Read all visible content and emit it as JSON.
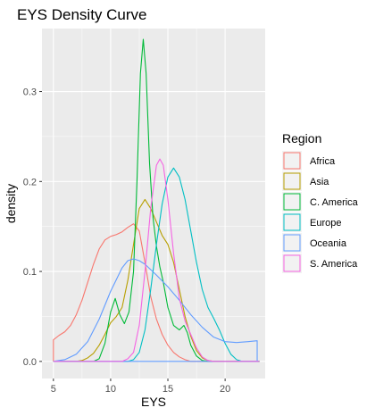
{
  "chart_data": {
    "type": "line",
    "title": "EYS Density Curve",
    "xlabel": "EYS",
    "ylabel": "density",
    "xlim": [
      4.0,
      23.5
    ],
    "ylim": [
      -0.019,
      0.37
    ],
    "x_ticks": [
      5,
      10,
      15,
      20
    ],
    "x_tick_labels": [
      "5",
      "10",
      "15",
      "20"
    ],
    "y_ticks": [
      0.0,
      0.1,
      0.2,
      0.3
    ],
    "y_tick_labels": [
      "0.0",
      "0.1",
      "0.2",
      "0.3"
    ],
    "grid": true,
    "legend": {
      "title": "Region",
      "placement": "right"
    },
    "series": [
      {
        "name": "Africa",
        "color": "#F8766D",
        "points": [
          [
            5.0,
            0.0
          ],
          [
            5.0,
            0.024
          ],
          [
            5.5,
            0.029
          ],
          [
            6.0,
            0.033
          ],
          [
            6.5,
            0.04
          ],
          [
            7.0,
            0.052
          ],
          [
            7.5,
            0.068
          ],
          [
            8.0,
            0.088
          ],
          [
            8.5,
            0.108
          ],
          [
            9.0,
            0.125
          ],
          [
            9.5,
            0.135
          ],
          [
            10.0,
            0.139
          ],
          [
            10.5,
            0.141
          ],
          [
            11.0,
            0.144
          ],
          [
            11.5,
            0.149
          ],
          [
            12.0,
            0.153
          ],
          [
            12.5,
            0.145
          ],
          [
            13.0,
            0.11
          ],
          [
            13.5,
            0.072
          ],
          [
            14.0,
            0.047
          ],
          [
            14.5,
            0.03
          ],
          [
            15.0,
            0.018
          ],
          [
            15.5,
            0.01
          ],
          [
            16.0,
            0.005
          ],
          [
            16.5,
            0.002
          ],
          [
            17.0,
            0.0
          ],
          [
            18.0,
            0.0
          ],
          [
            23.0,
            0.0
          ]
        ]
      },
      {
        "name": "Asia",
        "color": "#B79F00",
        "points": [
          [
            5.0,
            0.0
          ],
          [
            7.0,
            0.0
          ],
          [
            7.5,
            0.001
          ],
          [
            8.0,
            0.004
          ],
          [
            8.5,
            0.009
          ],
          [
            9.0,
            0.018
          ],
          [
            9.5,
            0.03
          ],
          [
            10.0,
            0.043
          ],
          [
            10.5,
            0.05
          ],
          [
            11.0,
            0.06
          ],
          [
            11.5,
            0.09
          ],
          [
            12.0,
            0.13
          ],
          [
            12.5,
            0.17
          ],
          [
            13.0,
            0.18
          ],
          [
            13.5,
            0.17
          ],
          [
            14.0,
            0.155
          ],
          [
            14.5,
            0.14
          ],
          [
            15.0,
            0.13
          ],
          [
            15.5,
            0.11
          ],
          [
            16.0,
            0.08
          ],
          [
            16.5,
            0.05
          ],
          [
            17.0,
            0.028
          ],
          [
            17.5,
            0.012
          ],
          [
            18.0,
            0.004
          ],
          [
            18.5,
            0.001
          ],
          [
            19.0,
            0.0
          ],
          [
            23.0,
            0.0
          ]
        ]
      },
      {
        "name": "C. America",
        "color": "#00BA38",
        "points": [
          [
            5.0,
            0.0
          ],
          [
            8.5,
            0.0
          ],
          [
            9.0,
            0.003
          ],
          [
            9.5,
            0.02
          ],
          [
            10.0,
            0.055
          ],
          [
            10.4,
            0.07
          ],
          [
            10.8,
            0.052
          ],
          [
            11.2,
            0.042
          ],
          [
            11.6,
            0.055
          ],
          [
            12.0,
            0.1
          ],
          [
            12.3,
            0.2
          ],
          [
            12.6,
            0.32
          ],
          [
            12.85,
            0.358
          ],
          [
            13.1,
            0.32
          ],
          [
            13.4,
            0.22
          ],
          [
            13.7,
            0.16
          ],
          [
            14.0,
            0.128
          ],
          [
            14.3,
            0.105
          ],
          [
            14.6,
            0.088
          ],
          [
            15.0,
            0.06
          ],
          [
            15.5,
            0.04
          ],
          [
            16.0,
            0.035
          ],
          [
            16.4,
            0.04
          ],
          [
            16.7,
            0.032
          ],
          [
            17.0,
            0.018
          ],
          [
            17.5,
            0.006
          ],
          [
            18.0,
            0.001
          ],
          [
            18.5,
            0.0
          ],
          [
            23.0,
            0.0
          ]
        ]
      },
      {
        "name": "Europe",
        "color": "#00BFC4",
        "points": [
          [
            5.0,
            0.0
          ],
          [
            11.5,
            0.0
          ],
          [
            12.0,
            0.002
          ],
          [
            12.5,
            0.01
          ],
          [
            13.0,
            0.035
          ],
          [
            13.5,
            0.08
          ],
          [
            14.0,
            0.13
          ],
          [
            14.5,
            0.175
          ],
          [
            15.0,
            0.205
          ],
          [
            15.5,
            0.215
          ],
          [
            16.0,
            0.205
          ],
          [
            16.5,
            0.18
          ],
          [
            17.0,
            0.145
          ],
          [
            17.5,
            0.11
          ],
          [
            18.0,
            0.08
          ],
          [
            18.5,
            0.06
          ],
          [
            19.0,
            0.048
          ],
          [
            19.5,
            0.035
          ],
          [
            20.0,
            0.02
          ],
          [
            20.5,
            0.008
          ],
          [
            21.0,
            0.002
          ],
          [
            21.5,
            0.0
          ],
          [
            23.0,
            0.0
          ]
        ]
      },
      {
        "name": "Oceania",
        "color": "#619CFF",
        "points": [
          [
            5.0,
            0.0
          ],
          [
            6.0,
            0.002
          ],
          [
            7.0,
            0.008
          ],
          [
            8.0,
            0.022
          ],
          [
            9.0,
            0.047
          ],
          [
            10.0,
            0.078
          ],
          [
            11.0,
            0.104
          ],
          [
            11.5,
            0.112
          ],
          [
            12.0,
            0.114
          ],
          [
            12.5,
            0.112
          ],
          [
            13.0,
            0.108
          ],
          [
            14.0,
            0.096
          ],
          [
            15.0,
            0.083
          ],
          [
            16.0,
            0.068
          ],
          [
            17.0,
            0.052
          ],
          [
            18.0,
            0.038
          ],
          [
            19.0,
            0.027
          ],
          [
            20.0,
            0.022
          ],
          [
            21.0,
            0.021
          ],
          [
            22.0,
            0.022
          ],
          [
            22.8,
            0.023
          ],
          [
            22.8,
            0.0
          ],
          [
            5.0,
            0.0
          ]
        ]
      },
      {
        "name": "S. America",
        "color": "#F564E3",
        "points": [
          [
            5.0,
            0.0
          ],
          [
            11.0,
            0.0
          ],
          [
            11.5,
            0.003
          ],
          [
            12.0,
            0.01
          ],
          [
            12.5,
            0.04
          ],
          [
            13.0,
            0.1
          ],
          [
            13.5,
            0.17
          ],
          [
            14.0,
            0.218
          ],
          [
            14.3,
            0.225
          ],
          [
            14.6,
            0.218
          ],
          [
            15.0,
            0.18
          ],
          [
            15.5,
            0.12
          ],
          [
            16.0,
            0.07
          ],
          [
            16.5,
            0.045
          ],
          [
            17.0,
            0.03
          ],
          [
            17.5,
            0.015
          ],
          [
            18.0,
            0.005
          ],
          [
            18.5,
            0.001
          ],
          [
            19.0,
            0.0
          ],
          [
            23.0,
            0.0
          ]
        ]
      }
    ]
  }
}
